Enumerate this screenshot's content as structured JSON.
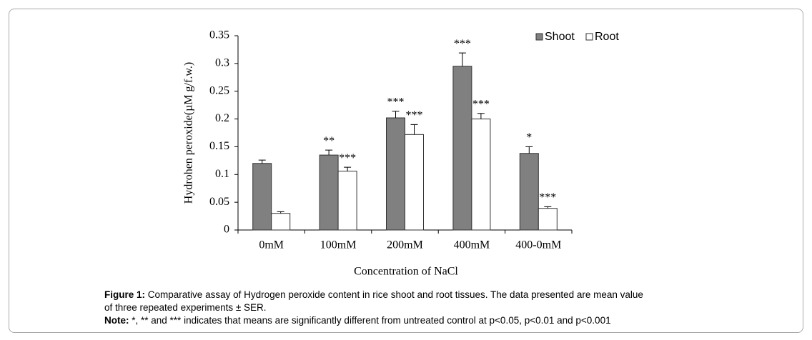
{
  "chart_data": {
    "type": "bar",
    "y_label": "Hydrohen peroxide(µM g/f.w.)",
    "x_label": "Concentration of NaCl",
    "categories": [
      "0mM",
      "100mM",
      "200mM",
      "400mM",
      "400-0mM"
    ],
    "series": [
      {
        "name": "Shoot",
        "color": "#808080",
        "values": [
          0.12,
          0.135,
          0.202,
          0.295,
          0.138
        ],
        "errors": [
          0.006,
          0.009,
          0.012,
          0.024,
          0.012
        ],
        "annotations": [
          null,
          "**",
          "***",
          "***",
          "*"
        ]
      },
      {
        "name": "Root",
        "color": "#ffffff",
        "values": [
          0.03,
          0.106,
          0.172,
          0.2,
          0.039
        ],
        "errors": [
          0.003,
          0.007,
          0.018,
          0.01,
          0.003
        ],
        "annotations": [
          null,
          "***",
          "***",
          "***",
          "***"
        ]
      }
    ],
    "ylim": [
      0,
      0.35
    ],
    "yticks": [
      0,
      0.05,
      0.1,
      0.15,
      0.2,
      0.25,
      0.3,
      0.35
    ],
    "legend": "top-right"
  },
  "caption": {
    "label": "Figure 1:",
    "lines": [
      "Comparative assay of Hydrogen peroxide content in rice shoot and root tissues. The data presented are mean value",
      "of three repeated experiments ± SER."
    ]
  },
  "note": {
    "label": "Note:",
    "text": "*, ** and *** indicates that means are significantly different from untreated control at p<0.05, p<0.01 and p<0.001"
  }
}
